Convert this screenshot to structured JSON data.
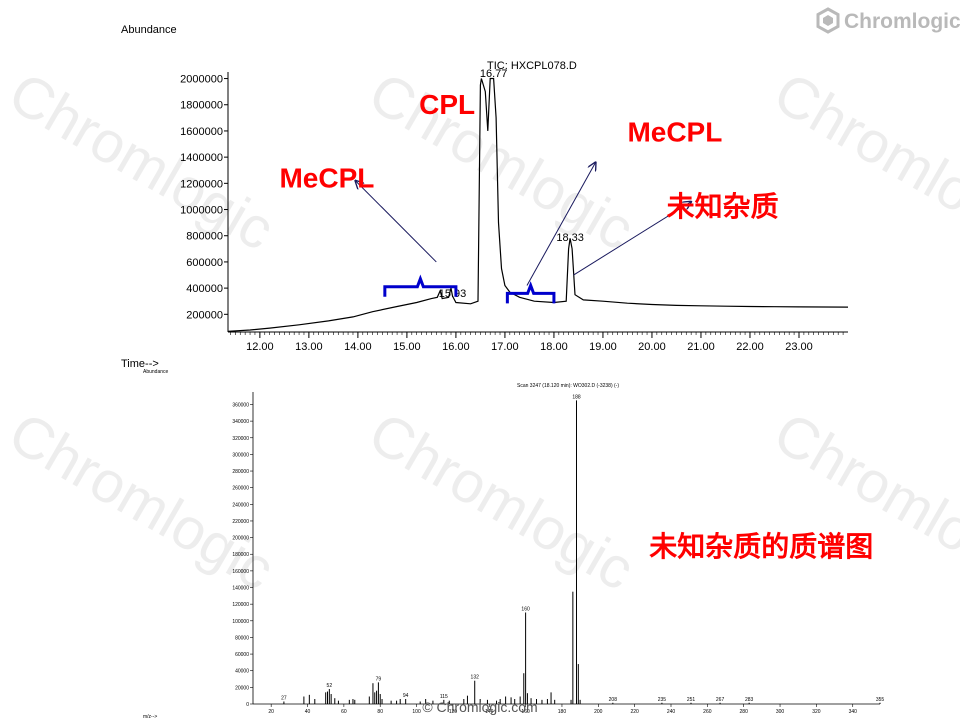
{
  "brand": {
    "name": "Chromlogic",
    "watermark": "Chromlogic",
    "footer": "© Chromlogic.com",
    "logo_icon": "hexagon-logo-icon"
  },
  "colors": {
    "annotation": "#ff0000",
    "bracket": "#0000cc",
    "arrow": "#1a1a5e",
    "trace": "#000000"
  },
  "chart_data": [
    {
      "type": "line",
      "title": "TIC: HXCPL078.D",
      "ylabel": "Abundance",
      "xlabel": "Time-->",
      "xlim": [
        11.35,
        24.0
      ],
      "ylim": [
        65000,
        2050000
      ],
      "x_ticks": [
        "12.00",
        "13.00",
        "14.00",
        "15.00",
        "16.00",
        "17.00",
        "18.00",
        "19.00",
        "20.00",
        "21.00",
        "22.00",
        "23.00"
      ],
      "y_ticks": [
        "200000",
        "400000",
        "600000",
        "800000",
        "1000000",
        "1200000",
        "1400000",
        "1600000",
        "1800000",
        "2000000"
      ],
      "peak_labels": [
        {
          "x": 15.93,
          "y": 300000,
          "text": "15.93"
        },
        {
          "x": 16.77,
          "y": 1980000,
          "text": "16.77"
        },
        {
          "x": 18.33,
          "y": 730000,
          "text": "18.33"
        }
      ],
      "series": [
        {
          "points": [
            [
              11.35,
              70000
            ],
            [
              11.8,
              80000
            ],
            [
              12.2,
              95000
            ],
            [
              12.8,
              120000
            ],
            [
              13.4,
              150000
            ],
            [
              13.9,
              180000
            ],
            [
              14.3,
              220000
            ],
            [
              14.8,
              260000
            ],
            [
              15.2,
              290000
            ],
            [
              15.5,
              320000
            ],
            [
              15.62,
              330000
            ],
            [
              15.68,
              380000
            ],
            [
              15.72,
              320000
            ],
            [
              15.85,
              330000
            ],
            [
              15.9,
              400000
            ],
            [
              15.93,
              340000
            ],
            [
              16.0,
              290000
            ],
            [
              16.3,
              280000
            ],
            [
              16.45,
              300000
            ],
            [
              16.5,
              1950000
            ],
            [
              16.52,
              2000000
            ],
            [
              16.6,
              1900000
            ],
            [
              16.65,
              1600000
            ],
            [
              16.7,
              2000000
            ],
            [
              16.77,
              2000000
            ],
            [
              16.82,
              1700000
            ],
            [
              16.87,
              900000
            ],
            [
              16.93,
              550000
            ],
            [
              17.0,
              420000
            ],
            [
              17.1,
              370000
            ],
            [
              17.3,
              330000
            ],
            [
              17.6,
              300000
            ],
            [
              18.0,
              290000
            ],
            [
              18.25,
              300000
            ],
            [
              18.3,
              700000
            ],
            [
              18.33,
              780000
            ],
            [
              18.37,
              700000
            ],
            [
              18.43,
              350000
            ],
            [
              18.6,
              310000
            ],
            [
              19.0,
              300000
            ],
            [
              19.5,
              285000
            ],
            [
              20.0,
              275000
            ],
            [
              20.5,
              268000
            ],
            [
              21.0,
              265000
            ],
            [
              21.5,
              262000
            ],
            [
              22.0,
              260000
            ],
            [
              22.5,
              258000
            ],
            [
              23.0,
              257000
            ],
            [
              24.0,
              255000
            ]
          ]
        }
      ],
      "annotations": [
        {
          "text": "CPL",
          "x": 15.25,
          "y": 1730000,
          "size": 28
        },
        {
          "text": "MeCPL",
          "x": 12.4,
          "y": 1170000,
          "size": 28
        },
        {
          "text": "MeCPL",
          "x": 19.5,
          "y": 1520000,
          "size": 28
        },
        {
          "text": "未知杂质",
          "x": 20.3,
          "y": 950000,
          "size": 28
        }
      ],
      "brackets": [
        {
          "x_from": 14.55,
          "x_to": 16.0,
          "y": 410000
        },
        {
          "x_from": 17.05,
          "x_to": 18.0,
          "y": 360000
        }
      ],
      "arrows": [
        {
          "from": [
            15.6,
            600000
          ],
          "to": [
            13.95,
            1220000
          ]
        },
        {
          "from": [
            17.45,
            420000
          ],
          "to": [
            18.85,
            1360000
          ]
        },
        {
          "from": [
            18.4,
            500000
          ],
          "to": [
            20.8,
            1060000
          ]
        }
      ]
    },
    {
      "type": "bar",
      "title": "Scan 3247 (18.120 min): WO302.D (-3238) (-)",
      "ylabel": "Abundance",
      "xlabel": "m/z-->",
      "xlim": [
        10,
        355
      ],
      "ylim": [
        0,
        375000
      ],
      "x_ticks": [
        20,
        40,
        60,
        80,
        100,
        120,
        140,
        160,
        180,
        200,
        220,
        240,
        260,
        280,
        300,
        320,
        340
      ],
      "y_ticks": [
        0,
        20000,
        40000,
        60000,
        80000,
        100000,
        120000,
        140000,
        160000,
        180000,
        200000,
        220000,
        240000,
        260000,
        280000,
        300000,
        320000,
        340000,
        360000
      ],
      "sticks": [
        [
          27,
          3000
        ],
        [
          38,
          9000
        ],
        [
          41,
          11000
        ],
        [
          44,
          6000
        ],
        [
          50,
          14000
        ],
        [
          51,
          15000
        ],
        [
          52,
          18000
        ],
        [
          53,
          12000
        ],
        [
          55,
          7000
        ],
        [
          57,
          4000
        ],
        [
          63,
          5000
        ],
        [
          65,
          6000
        ],
        [
          66,
          5000
        ],
        [
          74,
          9000
        ],
        [
          76,
          25000
        ],
        [
          77,
          14000
        ],
        [
          78,
          16000
        ],
        [
          79,
          26000
        ],
        [
          80,
          12000
        ],
        [
          81,
          6000
        ],
        [
          86,
          4000
        ],
        [
          89,
          4000
        ],
        [
          91,
          6000
        ],
        [
          94,
          6000
        ],
        [
          102,
          3000
        ],
        [
          105,
          6000
        ],
        [
          109,
          4000
        ],
        [
          115,
          5000
        ],
        [
          118,
          4000
        ],
        [
          126,
          6000
        ],
        [
          128,
          10000
        ],
        [
          132,
          28000
        ],
        [
          135,
          6000
        ],
        [
          139,
          5000
        ],
        [
          144,
          4000
        ],
        [
          146,
          6000
        ],
        [
          149,
          9000
        ],
        [
          152,
          8000
        ],
        [
          154,
          6000
        ],
        [
          157,
          9000
        ],
        [
          159,
          37000
        ],
        [
          160,
          110000
        ],
        [
          161,
          13000
        ],
        [
          163,
          7000
        ],
        [
          166,
          6000
        ],
        [
          169,
          5000
        ],
        [
          172,
          6000
        ],
        [
          174,
          14000
        ],
        [
          176,
          5000
        ],
        [
          185,
          5000
        ],
        [
          186,
          135000
        ],
        [
          188,
          365000
        ],
        [
          189,
          48000
        ],
        [
          190,
          5000
        ],
        [
          208,
          1500
        ],
        [
          235,
          1500
        ],
        [
          251,
          1500
        ],
        [
          267,
          1500
        ],
        [
          283,
          1500
        ],
        [
          355,
          1500
        ]
      ],
      "peak_labels": [
        [
          27,
          "27"
        ],
        [
          52,
          "52"
        ],
        [
          79,
          "79"
        ],
        [
          94,
          "94"
        ],
        [
          115,
          "115"
        ],
        [
          132,
          "132"
        ],
        [
          160,
          "160"
        ],
        [
          188,
          "188"
        ],
        [
          208,
          "208"
        ],
        [
          235,
          "235"
        ],
        [
          251,
          "251"
        ],
        [
          267,
          "267"
        ],
        [
          283,
          "283"
        ],
        [
          355,
          "355"
        ]
      ],
      "annotations": [
        {
          "text": "未知杂质的质谱图",
          "x": 228,
          "y": 178000,
          "size": 28
        }
      ]
    }
  ]
}
